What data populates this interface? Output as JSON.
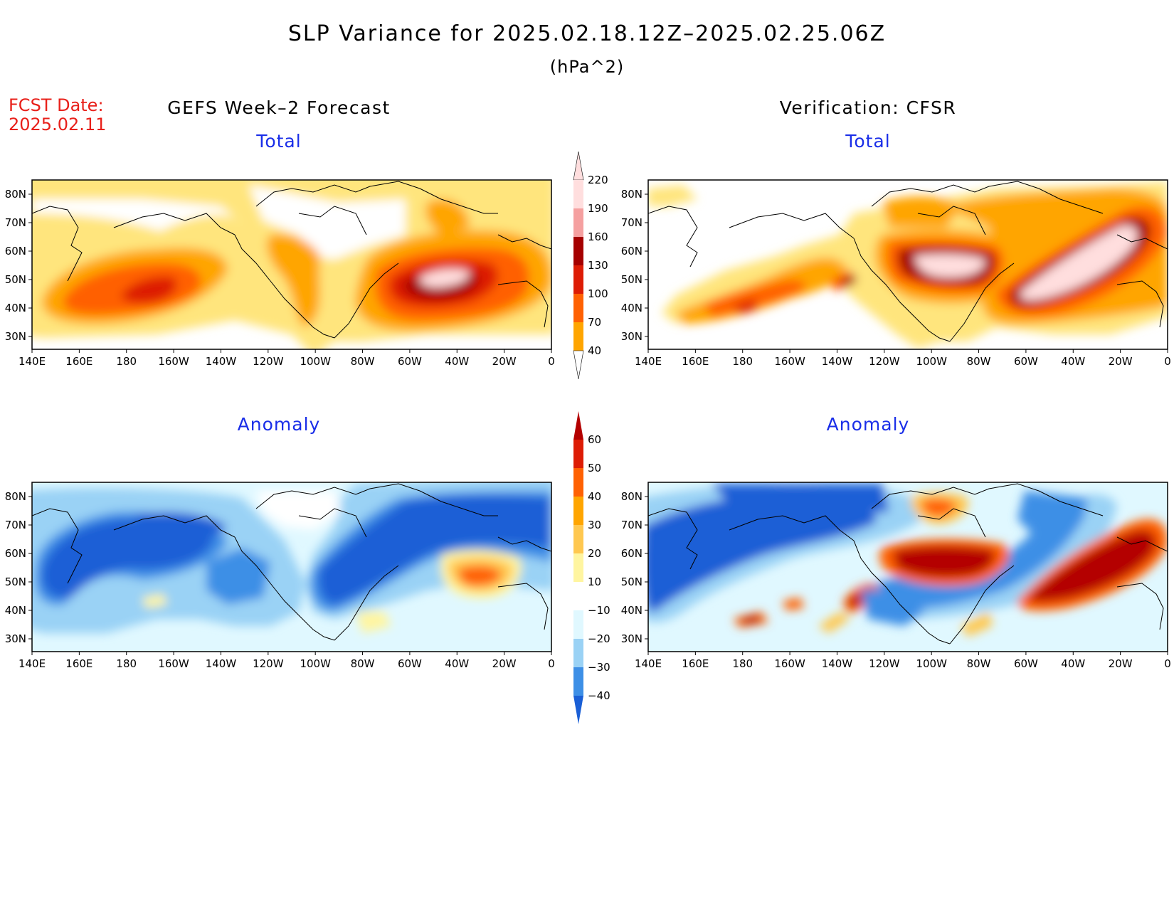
{
  "title": "SLP Variance for 2025.02.18.12Z–2025.02.25.06Z",
  "units": "(hPa^2)",
  "fcst_date": {
    "label": "FCST Date:",
    "value": "2025.02.11"
  },
  "columns": {
    "left": "GEFS Week–2 Forecast",
    "right": "Verification: CFSR"
  },
  "panels": {
    "forecast_total": "Total",
    "verification_total": "Total",
    "forecast_anomaly": "Anomaly",
    "verification_anomaly": "Anomaly"
  },
  "axes": {
    "lat_labels": [
      "80N",
      "70N",
      "60N",
      "50N",
      "40N",
      "30N"
    ],
    "lon_labels": [
      "140E",
      "160E",
      "180",
      "160W",
      "140W",
      "120W",
      "100W",
      "80W",
      "60W",
      "40W",
      "20W",
      "0"
    ]
  },
  "total_colorbar": {
    "levels": [
      "220",
      "190",
      "160",
      "130",
      "100",
      "70",
      "40"
    ],
    "colors": [
      "#ffdede",
      "#f5a0a0",
      "#a50000",
      "#dd1c05",
      "#ff6103",
      "#ffa500",
      "#ffe57d"
    ]
  },
  "anomaly_colorbar": {
    "levels": [
      "60",
      "50",
      "40",
      "30",
      "20",
      "10",
      "−10",
      "−20",
      "−30",
      "−40"
    ],
    "colors": [
      "#b40000",
      "#dd1c05",
      "#ff6103",
      "#ffa500",
      "#ffc850",
      "#fff5a0",
      "#ffffff",
      "#e0f8ff",
      "#9ad2f5",
      "#3d8fe6",
      "#1a5fd6"
    ]
  },
  "chart_data": {
    "type": "heatmap",
    "title": "SLP Variance for 2025.02.18.12Z–2025.02.25.06Z",
    "units": "hPa^2",
    "lon_range": [
      "140E",
      "0"
    ],
    "lat_range": [
      "25N",
      "85N"
    ]
  }
}
